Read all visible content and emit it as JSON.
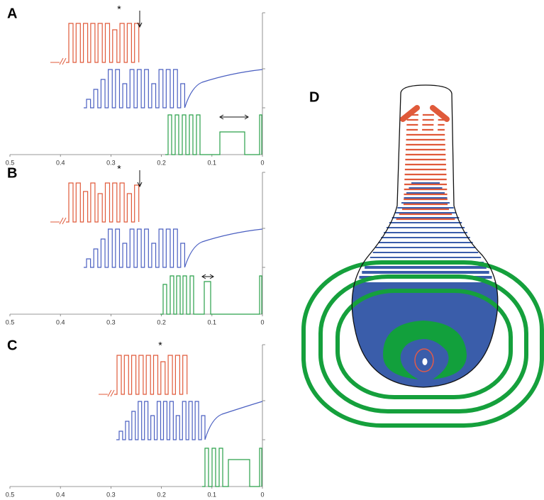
{
  "panels": [
    {
      "label": "A",
      "star": "*",
      "xlim": [
        0.5,
        0
      ],
      "xticks": [
        0.5,
        0.4,
        0.3,
        0.2,
        0.1,
        0
      ]
    },
    {
      "label": "B",
      "star": "*",
      "xlim": [
        0.5,
        0
      ],
      "xticks": [
        0.5,
        0.4,
        0.3,
        0.2,
        0.1,
        0
      ]
    },
    {
      "label": "C",
      "star": "*",
      "xlim": [
        0.5,
        0
      ],
      "xticks": [
        0.5,
        0.4,
        0.3,
        0.2,
        0.1,
        0
      ]
    }
  ],
  "panel_d": {
    "label": "D"
  }
}
